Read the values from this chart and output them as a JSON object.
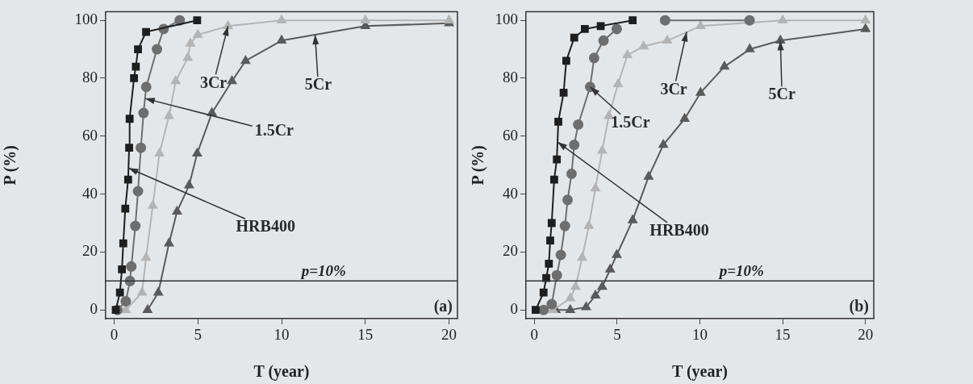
{
  "chart_data": [
    {
      "type": "line",
      "xlabel": "T (year)",
      "ylabel": "P (%)",
      "xlim": [
        -0.5,
        20.5
      ],
      "ylim": [
        -3,
        103
      ],
      "xticks": [
        0,
        5,
        10,
        15,
        20
      ],
      "yticks": [
        0,
        20,
        40,
        60,
        80,
        100
      ],
      "grid": false,
      "legend": false,
      "line_style": "solid",
      "series": [
        {
          "color": "#1e1e1e",
          "marker": "square",
          "x": [
            0.1,
            0.35,
            0.47,
            0.55,
            0.67,
            0.84,
            0.9,
            0.93,
            1.19,
            1.3,
            1.43,
            1.91,
            4.96
          ],
          "values": [
            0,
            6,
            14,
            23,
            35,
            45,
            56,
            66,
            80,
            84,
            90,
            96,
            100
          ]
        },
        {
          "color": "#6e6e6e",
          "marker": "circle",
          "x": [
            0.2,
            0.7,
            0.95,
            1.03,
            1.27,
            1.43,
            1.6,
            1.76,
            1.92,
            2.56,
            2.96,
            3.92
          ],
          "values": [
            0,
            3,
            10,
            15,
            29,
            41,
            56,
            68,
            77,
            90,
            97,
            100
          ]
        },
        {
          "color": "#b4b4b4",
          "marker": "triangle",
          "x": [
            0.7,
            1.67,
            1.91,
            2.31,
            2.71,
            3.28,
            3.68,
            4.4,
            4.56,
            5.0,
            6.8,
            10,
            15,
            20
          ],
          "values": [
            0,
            6,
            18,
            36,
            54,
            67,
            79,
            87,
            92,
            95,
            98,
            100,
            100,
            100
          ]
        },
        {
          "color": "#5a5a5a",
          "marker": "triangle",
          "x": [
            2.0,
            2.64,
            3.28,
            3.76,
            4.48,
            4.96,
            5.84,
            7.04,
            7.85,
            10,
            15,
            20
          ],
          "values": [
            0,
            6,
            23,
            34,
            43,
            54,
            68,
            79,
            86,
            93,
            98,
            99
          ]
        }
      ],
      "ref_lines": [
        {
          "axis": "y",
          "value": 10,
          "label": "p=10%"
        }
      ],
      "annotations": [
        {
          "text": "3Cr",
          "x": 6.8,
          "y": 98
        },
        {
          "text": "5Cr",
          "x": 12,
          "y": 95
        },
        {
          "text": "1.5Cr",
          "x": 1.85,
          "y": 73
        },
        {
          "text": "HRB400",
          "x": 0.86,
          "y": 49
        },
        "(a)"
      ]
    },
    {
      "type": "line",
      "xlabel": "T (year)",
      "ylabel": "P (%)",
      "xlim": [
        -0.5,
        20.5
      ],
      "ylim": [
        -3,
        103
      ],
      "xticks": [
        0,
        5,
        10,
        15,
        20
      ],
      "yticks": [
        0,
        20,
        40,
        60,
        80,
        100
      ],
      "grid": false,
      "legend": false,
      "line_style": "solid",
      "series": [
        {
          "color": "#1e1e1e",
          "marker": "square",
          "x": [
            0.08,
            0.56,
            0.72,
            0.88,
            0.96,
            1.05,
            1.2,
            1.36,
            1.45,
            1.77,
            1.93,
            2.41,
            3.05,
            4.01,
            5.94
          ],
          "values": [
            0,
            6,
            11,
            16,
            24,
            30,
            45,
            52,
            65,
            75,
            86,
            94,
            97,
            98,
            100
          ]
        },
        {
          "color": "#6e6e6e",
          "marker": "circle",
          "x": [
            0.56,
            1.05,
            1.36,
            1.6,
            1.85,
            2.01,
            2.25,
            2.41,
            2.65,
            3.37,
            3.61,
            4.18,
            4.98,
            5.94,
            7.9,
            13
          ],
          "values": [
            0,
            2,
            12,
            19,
            29,
            38,
            47,
            57,
            64,
            77,
            87,
            93,
            97,
            null,
            100,
            100
          ]
        },
        {
          "color": "#b4b4b4",
          "marker": "triangle",
          "x": [
            1.12,
            2.17,
            2.49,
            2.89,
            3.29,
            3.69,
            4.1,
            4.5,
            5.06,
            5.62,
            6.6,
            8.03,
            10.04,
            15,
            20
          ],
          "values": [
            0,
            4,
            8,
            18,
            29,
            42,
            55,
            67,
            78,
            88,
            91,
            93,
            98,
            100,
            100
          ]
        },
        {
          "color": "#5a5a5a",
          "marker": "triangle",
          "x": [
            1.29,
            2.17,
            3.13,
            3.69,
            4.1,
            4.58,
            4.98,
            5.94,
            6.9,
            7.79,
            9.08,
            10.04,
            11.48,
            13.01,
            14.86,
            20
          ],
          "values": [
            0,
            0,
            1,
            5,
            8,
            14,
            19,
            31,
            46,
            57,
            66,
            75,
            84,
            90,
            93,
            97
          ]
        }
      ],
      "ref_lines": [
        {
          "axis": "y",
          "value": 10,
          "label": "p=10%"
        }
      ],
      "annotations": [
        {
          "text": "3Cr",
          "x": 9.2,
          "y": 96
        },
        {
          "text": "1.5Cr",
          "x": 3.37,
          "y": 77
        },
        {
          "text": "5Cr",
          "x": 14.86,
          "y": 93
        },
        {
          "text": "HRB400",
          "x": 1.4,
          "y": 58
        },
        "(b)"
      ]
    }
  ]
}
